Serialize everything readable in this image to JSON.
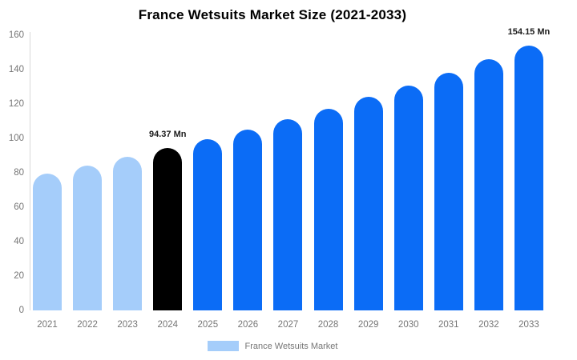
{
  "chart_data": {
    "type": "bar",
    "title": "France Wetsuits Market Size (2021-2033)",
    "xlabel": "",
    "ylabel": "",
    "categories": [
      "2021",
      "2022",
      "2023",
      "2024",
      "2025",
      "2026",
      "2027",
      "2028",
      "2029",
      "2030",
      "2031",
      "2032",
      "2033"
    ],
    "values": [
      79.4,
      84.3,
      89.4,
      94.37,
      99.7,
      105.3,
      111.2,
      117.4,
      124.0,
      130.9,
      138.2,
      146.0,
      154.15
    ],
    "bar_colors": [
      "#a5cdfa",
      "#a5cdfa",
      "#a5cdfa",
      "#000000",
      "#0b6cf6",
      "#0b6cf6",
      "#0b6cf6",
      "#0b6cf6",
      "#0b6cf6",
      "#0b6cf6",
      "#0b6cf6",
      "#0b6cf6",
      "#0b6cf6"
    ],
    "annotations": [
      {
        "category": "2024",
        "label": "94.37 Mn"
      },
      {
        "category": "2033",
        "label": "154.15 Mn"
      }
    ],
    "ylim": [
      0,
      160
    ],
    "yticks": [
      0,
      20,
      40,
      60,
      80,
      100,
      120,
      140,
      160
    ],
    "grid": false,
    "legend_position": "bottom",
    "legend": [
      {
        "label": "France Wetsuits Market",
        "color": "#a5cdfa"
      }
    ],
    "colors": {
      "historical_bars": "#a5cdfa",
      "highlight_bar": "#000000",
      "forecast_bars": "#0b6cf6",
      "axis_text": "#757575",
      "axis_line": "#d9d9d9",
      "annotation_text": "#1c1c1c",
      "background": "#ffffff"
    }
  }
}
